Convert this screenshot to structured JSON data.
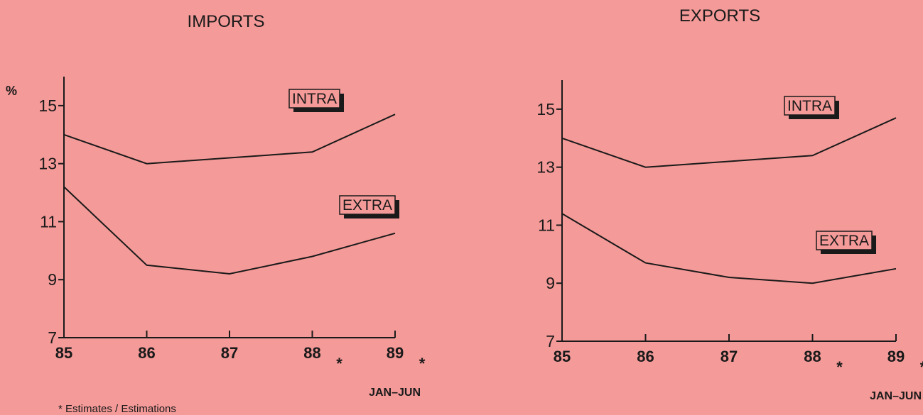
{
  "footnote": "* Estimates / Estimations",
  "chart_data": [
    {
      "type": "line",
      "title": "IMPORTS",
      "ylabel": "%",
      "x": [
        "85",
        "86",
        "87",
        "88",
        "89"
      ],
      "x_markers": [
        "",
        "",
        "",
        "*",
        "*"
      ],
      "x_period_label": "JAN–JUN",
      "ylim": [
        7,
        16
      ],
      "yticks": [
        7,
        9,
        11,
        13,
        15
      ],
      "grid": false,
      "series": [
        {
          "name": "INTRA",
          "values": [
            14.0,
            13.0,
            13.2,
            13.4,
            14.7
          ]
        },
        {
          "name": "EXTRA",
          "values": [
            12.2,
            9.5,
            9.2,
            9.8,
            10.6
          ]
        }
      ]
    },
    {
      "type": "line",
      "title": "EXPORTS",
      "ylabel": "",
      "x": [
        "85",
        "86",
        "87",
        "88",
        "89"
      ],
      "x_markers": [
        "",
        "",
        "",
        "*",
        "*"
      ],
      "x_period_label": "JAN–JUN",
      "ylim": [
        7,
        16
      ],
      "yticks": [
        7,
        9,
        11,
        13,
        15
      ],
      "grid": false,
      "series": [
        {
          "name": "INTRA",
          "values": [
            14.0,
            13.0,
            13.2,
            13.4,
            14.7
          ]
        },
        {
          "name": "EXTRA",
          "values": [
            11.4,
            9.7,
            9.2,
            9.0,
            9.5
          ]
        }
      ]
    }
  ]
}
